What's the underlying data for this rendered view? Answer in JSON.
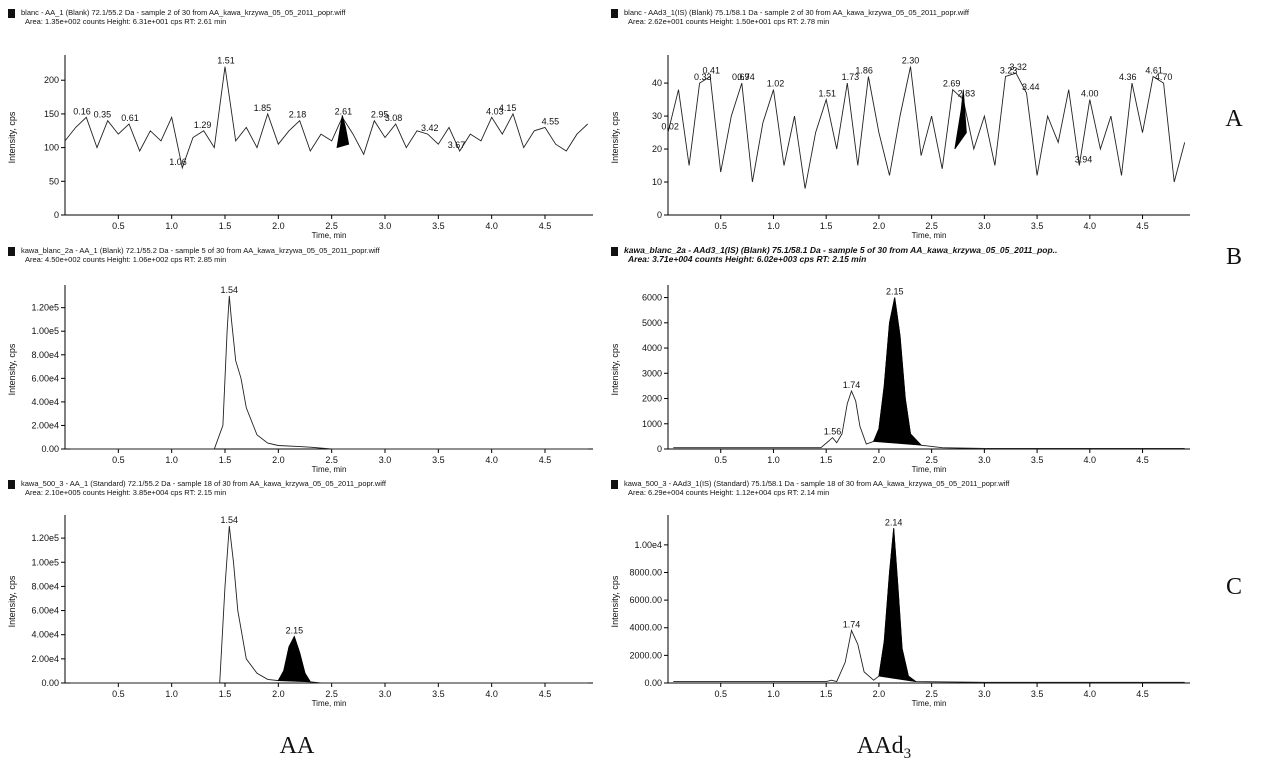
{
  "chart_data": [
    {
      "type": "line",
      "title": "blanc - AA_1 (Blank) 72.1/55.2 Da - sample 2 of 30 from AA_kawa_krzywa_05_05_2011_popr.wiff",
      "subtitle": "Area: 1.35e+002 counts  Height: 6.31e+001 cps  RT: 2.61 min",
      "header_style": "normal",
      "x_label": "Time, min",
      "y_label": "Intensity, cps",
      "xlim": [
        0,
        4.95
      ],
      "xticks": [
        0.5,
        {
          "value": 1,
          "label": "1.0"
        },
        1.5,
        {
          "value": 2,
          "label": "2.0"
        },
        2.5,
        {
          "value": 3,
          "label": "3.0"
        },
        3.5,
        {
          "value": 4,
          "label": "4.0"
        },
        4.5
      ],
      "ylim": [
        0,
        230
      ],
      "yticks": [
        0,
        50,
        100,
        150,
        200
      ],
      "peak_labels": [
        0.16,
        0.35,
        0.61,
        1.06,
        1.29,
        1.51,
        1.85,
        2.18,
        2.61,
        2.95,
        3.08,
        3.42,
        3.67,
        4.03,
        4.15,
        4.55
      ],
      "series": [
        {
          "color": "#222222",
          "fill": false,
          "x": [
            0,
            0.1,
            0.2,
            0.3,
            0.4,
            0.5,
            0.6,
            0.7,
            0.8,
            0.9,
            1,
            1.1,
            1.2,
            1.3,
            1.4,
            1.5,
            1.6,
            1.7,
            1.8,
            1.9,
            2,
            2.1,
            2.2,
            2.3,
            2.4,
            2.5,
            2.6,
            2.7,
            2.8,
            2.9,
            3,
            3.1,
            3.2,
            3.3,
            3.4,
            3.5,
            3.6,
            3.7,
            3.8,
            3.9,
            4,
            4.1,
            4.2,
            4.3,
            4.4,
            4.5,
            4.6,
            4.7,
            4.8,
            4.9
          ],
          "values": [
            110,
            130,
            145,
            100,
            140,
            120,
            135,
            95,
            125,
            110,
            145,
            70,
            115,
            125,
            100,
            220,
            110,
            130,
            100,
            150,
            105,
            125,
            140,
            95,
            120,
            110,
            145,
            120,
            90,
            140,
            115,
            135,
            100,
            125,
            120,
            105,
            130,
            95,
            120,
            110,
            145,
            120,
            150,
            100,
            125,
            130,
            105,
            95,
            120,
            135
          ]
        },
        {
          "color": "#000000",
          "fill": true,
          "x": [
            2.55,
            2.6,
            2.63,
            2.66
          ],
          "values": [
            100,
            148,
            130,
            105
          ]
        }
      ]
    },
    {
      "type": "line",
      "title": "blanc - AAd3_1(IS) (Blank) 75.1/58.1 Da - sample 2 of 30 from AA_kawa_krzywa_05_05_2011_popr.wiff",
      "subtitle": "Area: 2.62e+001 counts  Height: 1.50e+001 cps  RT: 2.78 min",
      "header_style": "normal",
      "x_label": "Time, min",
      "y_label": "Intensity, cps",
      "xlim": [
        0,
        4.95
      ],
      "xticks": [
        0.5,
        {
          "value": 1,
          "label": "1.0"
        },
        1.5,
        {
          "value": 2,
          "label": "2.0"
        },
        2.5,
        {
          "value": 3,
          "label": "3.0"
        },
        3.5,
        {
          "value": 4,
          "label": "4.0"
        },
        4.5
      ],
      "ylim": [
        0,
        47
      ],
      "yticks": [
        0,
        10,
        20,
        30,
        40
      ],
      "peak_labels": [
        0.02,
        0.33,
        0.41,
        0.69,
        0.74,
        1.02,
        1.51,
        1.73,
        1.86,
        {
          "value": 2.3,
          "label": "2.30"
        },
        2.69,
        2.83,
        3.23,
        3.32,
        3.44,
        3.94,
        {
          "value": 4,
          "label": "4.00"
        },
        4.36,
        4.61,
        {
          "value": 4.7,
          "label": "4.70"
        }
      ],
      "series": [
        {
          "color": "#222222",
          "fill": false,
          "x": [
            0,
            0.1,
            0.2,
            0.3,
            0.4,
            0.5,
            0.6,
            0.7,
            0.8,
            0.9,
            1,
            1.1,
            1.2,
            1.3,
            1.4,
            1.5,
            1.6,
            1.7,
            1.8,
            1.9,
            2,
            2.1,
            2.2,
            2.3,
            2.4,
            2.5,
            2.6,
            2.7,
            2.8,
            2.9,
            3,
            3.1,
            3.2,
            3.3,
            3.4,
            3.5,
            3.6,
            3.7,
            3.8,
            3.9,
            4,
            4.1,
            4.2,
            4.3,
            4.4,
            4.5,
            4.6,
            4.7,
            4.8,
            4.9
          ],
          "values": [
            25,
            38,
            15,
            40,
            42,
            13,
            30,
            40,
            10,
            28,
            38,
            15,
            30,
            8,
            25,
            35,
            20,
            40,
            15,
            42,
            25,
            12,
            30,
            45,
            18,
            30,
            14,
            38,
            35,
            20,
            30,
            15,
            42,
            43,
            37,
            12,
            30,
            22,
            38,
            15,
            35,
            20,
            30,
            12,
            40,
            25,
            42,
            40,
            10,
            22
          ]
        },
        {
          "color": "#000000",
          "fill": true,
          "x": [
            2.72,
            2.78,
            2.8,
            2.83
          ],
          "values": [
            20,
            32,
            38,
            25
          ]
        }
      ]
    },
    {
      "type": "line",
      "title": "kawa_blanc_2a - AA_1 (Blank) 72.1/55.2 Da - sample 5 of 30 from AA_kawa_krzywa_05_05_2011_popr.wiff",
      "subtitle": "Area: 4.50e+002 counts  Height: 1.06e+002 cps  RT: 2.85 min",
      "header_style": "normal",
      "x_label": "Time, min",
      "y_label": "Intensity, cps",
      "xlim": [
        0,
        4.95
      ],
      "xticks": [
        0.5,
        {
          "value": 1,
          "label": "1.0"
        },
        1.5,
        {
          "value": 2,
          "label": "2.0"
        },
        2.5,
        {
          "value": 3,
          "label": "3.0"
        },
        3.5,
        {
          "value": 4,
          "label": "4.0"
        },
        4.5
      ],
      "ylim": [
        0,
        135000
      ],
      "yticks": [
        {
          "value": 0,
          "label": "0.00"
        },
        {
          "value": 20000,
          "label": "2.00e4"
        },
        {
          "value": 40000,
          "label": "4.00e4"
        },
        {
          "value": 60000,
          "label": "6.00e4"
        },
        {
          "value": 80000,
          "label": "8.00e4"
        },
        {
          "value": 100000,
          "label": "1.00e5"
        },
        {
          "value": 120000,
          "label": "1.20e5"
        }
      ],
      "peak_labels": [
        1.54
      ],
      "series": [
        {
          "color": "#222222",
          "fill": false,
          "x": [
            0.05,
            0.5,
            1,
            1.4,
            1.48,
            1.52,
            1.54,
            1.56,
            1.6,
            1.65,
            1.7,
            1.8,
            1.9,
            2,
            2.2,
            2.3,
            2.5,
            3,
            4,
            4.9
          ],
          "values": [
            0,
            0,
            0,
            0,
            20000,
            100000,
            130000,
            110000,
            75000,
            60000,
            35000,
            12000,
            5000,
            3000,
            2000,
            1500,
            0,
            0,
            0,
            0
          ]
        }
      ]
    },
    {
      "type": "line",
      "title": "kawa_blanc_2a - AAd3_1(IS) (Blank) 75.1/58.1 Da - sample 5 of 30 from AA_kawa_krzywa_05_05_2011_pop..",
      "subtitle": "Area: 3.71e+004 counts  Height: 6.02e+003 cps  RT: 2.15 min",
      "header_style": "bold-italic",
      "x_label": "Time, min",
      "y_label": "Intensity, cps",
      "xlim": [
        0,
        4.95
      ],
      "xticks": [
        0.5,
        {
          "value": 1,
          "label": "1.0"
        },
        1.5,
        {
          "value": 2,
          "label": "2.0"
        },
        2.5,
        {
          "value": 3,
          "label": "3.0"
        },
        3.5,
        {
          "value": 4,
          "label": "4.0"
        },
        4.5
      ],
      "ylim": [
        0,
        6300
      ],
      "yticks": [
        0,
        1000,
        2000,
        3000,
        4000,
        5000,
        6000
      ],
      "peak_labels": [
        1.56,
        1.74,
        2.15
      ],
      "series": [
        {
          "color": "#222222",
          "fill": false,
          "x": [
            0.05,
            1,
            1.45,
            1.52,
            1.56,
            1.6,
            1.65,
            1.7,
            1.74,
            1.78,
            1.82,
            1.88,
            1.95,
            2,
            2.05,
            2.1,
            2.15,
            2.2,
            2.25,
            2.3,
            2.4,
            2.6,
            3,
            4,
            4.9
          ],
          "values": [
            50,
            50,
            50,
            300,
            450,
            250,
            600,
            1800,
            2300,
            1900,
            900,
            200,
            300,
            800,
            2500,
            5000,
            6000,
            4500,
            2000,
            600,
            150,
            50,
            20,
            20,
            20
          ]
        },
        {
          "color": "#000000",
          "fill": true,
          "x": [
            1.95,
            2,
            2.05,
            2.1,
            2.15,
            2.2,
            2.25,
            2.3,
            2.4
          ],
          "values": [
            300,
            800,
            2500,
            5000,
            6000,
            4500,
            2000,
            600,
            150
          ]
        }
      ]
    },
    {
      "type": "line",
      "title": "kawa_500_3 - AA_1 (Standard) 72.1/55.2 Da - sample 18 of 30 from AA_kawa_krzywa_05_05_2011_popr.wiff",
      "subtitle": "Area: 2.10e+005 counts  Height: 3.85e+004 cps  RT: 2.15 min",
      "header_style": "normal",
      "x_label": "Time, min",
      "y_label": "Intensity, cps",
      "xlim": [
        0,
        4.95
      ],
      "xticks": [
        0.5,
        {
          "value": 1,
          "label": "1.0"
        },
        1.5,
        {
          "value": 2,
          "label": "2.0"
        },
        2.5,
        {
          "value": 3,
          "label": "3.0"
        },
        3.5,
        {
          "value": 4,
          "label": "4.0"
        },
        4.5
      ],
      "ylim": [
        0,
        135000
      ],
      "yticks": [
        {
          "value": 0,
          "label": "0.00"
        },
        {
          "value": 20000,
          "label": "2.00e4"
        },
        {
          "value": 40000,
          "label": "4.00e4"
        },
        {
          "value": 60000,
          "label": "6.00e4"
        },
        {
          "value": 80000,
          "label": "8.00e4"
        },
        {
          "value": 100000,
          "label": "1.00e5"
        },
        {
          "value": 120000,
          "label": "1.20e5"
        }
      ],
      "peak_labels": [
        1.54,
        2.15
      ],
      "series": [
        {
          "color": "#222222",
          "fill": false,
          "x": [
            0.05,
            1,
            1.45,
            1.5,
            1.54,
            1.58,
            1.62,
            1.7,
            1.8,
            1.9,
            2,
            2.05,
            2.1,
            2.15,
            2.2,
            2.25,
            2.3,
            2.4,
            3,
            4.9
          ],
          "values": [
            0,
            0,
            0,
            80000,
            130000,
            100000,
            60000,
            20000,
            8000,
            3000,
            2000,
            10000,
            30000,
            38500,
            25000,
            8000,
            1000,
            0,
            0,
            0
          ]
        },
        {
          "color": "#000000",
          "fill": true,
          "x": [
            2,
            2.05,
            2.1,
            2.15,
            2.2,
            2.25,
            2.3
          ],
          "values": [
            2000,
            10000,
            30000,
            38500,
            25000,
            8000,
            1000
          ]
        }
      ]
    },
    {
      "type": "line",
      "title": "kawa_500_3 - AAd3_1(IS) (Standard) 75.1/58.1 Da - sample 18 of 30 from AA_kawa_krzywa_05_05_2011_popr.wiff",
      "subtitle": "Area: 6.29e+004 counts  Height: 1.12e+004 cps  RT: 2.14 min",
      "header_style": "normal",
      "x_label": "Time, min",
      "y_label": "Intensity, cps",
      "xlim": [
        0,
        4.95
      ],
      "xticks": [
        0.5,
        {
          "value": 1,
          "label": "1.0"
        },
        1.5,
        {
          "value": 2,
          "label": "2.0"
        },
        2.5,
        {
          "value": 3,
          "label": "3.0"
        },
        3.5,
        {
          "value": 4,
          "label": "4.0"
        },
        4.5
      ],
      "ylim": [
        0,
        11800
      ],
      "yticks": [
        {
          "value": 0,
          "label": "0.00"
        },
        {
          "value": 2000,
          "label": "2000.00"
        },
        {
          "value": 4000,
          "label": "4000.00"
        },
        {
          "value": 6000,
          "label": "6000.00"
        },
        {
          "value": 8000,
          "label": "8000.00"
        },
        {
          "value": 10000,
          "label": "1.00e4"
        }
      ],
      "peak_labels": [
        1.74,
        2.14
      ],
      "series": [
        {
          "color": "#222222",
          "fill": false,
          "x": [
            0.05,
            1,
            1.5,
            1.55,
            1.6,
            1.68,
            1.74,
            1.8,
            1.86,
            1.95,
            2,
            2.05,
            2.1,
            2.14,
            2.18,
            2.22,
            2.28,
            2.35,
            3,
            4.9
          ],
          "values": [
            100,
            100,
            100,
            200,
            100,
            1500,
            3800,
            2800,
            800,
            200,
            500,
            3000,
            8000,
            11200,
            7000,
            2500,
            500,
            100,
            50,
            50
          ]
        },
        {
          "color": "#000000",
          "fill": true,
          "x": [
            2,
            2.05,
            2.1,
            2.14,
            2.18,
            2.22,
            2.28,
            2.35
          ],
          "values": [
            500,
            3000,
            8000,
            11200,
            7000,
            2500,
            500,
            100
          ]
        }
      ]
    }
  ],
  "row_labels": [
    "A",
    "B",
    "C"
  ],
  "column_labels": [
    {
      "text": "AA"
    },
    {
      "text": "AAd",
      "sub": "3"
    }
  ]
}
